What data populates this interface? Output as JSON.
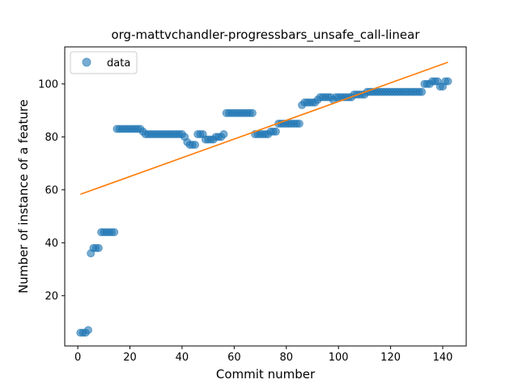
{
  "chart_data": {
    "type": "scatter",
    "title": "org-mattvchandler-progressbars_unsafe_call-linear",
    "xlabel": "Commit number",
    "ylabel": "Number of instance of a feature",
    "xlim": [
      -5,
      149
    ],
    "ylim": [
      1,
      114
    ],
    "xticks": [
      0,
      20,
      40,
      60,
      80,
      100,
      120,
      140
    ],
    "yticks": [
      20,
      40,
      60,
      80,
      100
    ],
    "legend": {
      "position": "top-left",
      "entries": [
        "data"
      ]
    },
    "grid": false,
    "series": [
      {
        "name": "data",
        "kind": "scatter",
        "color": "#1f77b4",
        "x": [
          1,
          2,
          3,
          4,
          5,
          6,
          7,
          8,
          9,
          10,
          11,
          12,
          13,
          14,
          15,
          16,
          17,
          18,
          19,
          20,
          21,
          22,
          23,
          24,
          25,
          26,
          27,
          28,
          29,
          30,
          31,
          32,
          33,
          34,
          35,
          36,
          37,
          38,
          39,
          40,
          41,
          42,
          43,
          44,
          45,
          46,
          47,
          48,
          49,
          50,
          51,
          52,
          53,
          54,
          55,
          56,
          57,
          58,
          59,
          60,
          61,
          62,
          63,
          64,
          65,
          66,
          67,
          68,
          69,
          70,
          71,
          72,
          73,
          74,
          75,
          76,
          77,
          78,
          79,
          80,
          81,
          82,
          83,
          84,
          85,
          86,
          87,
          88,
          89,
          90,
          91,
          92,
          93,
          94,
          95,
          96,
          97,
          98,
          99,
          100,
          101,
          102,
          103,
          104,
          105,
          106,
          107,
          108,
          109,
          110,
          111,
          112,
          113,
          114,
          115,
          116,
          117,
          118,
          119,
          120,
          121,
          122,
          123,
          124,
          125,
          126,
          127,
          128,
          129,
          130,
          131,
          132,
          133,
          134,
          135,
          136,
          137,
          138,
          139,
          140,
          141,
          142
        ],
        "y": [
          6,
          6,
          6,
          7,
          36,
          38,
          38,
          38,
          44,
          44,
          44,
          44,
          44,
          44,
          83,
          83,
          83,
          83,
          83,
          83,
          83,
          83,
          83,
          83,
          82,
          81,
          81,
          81,
          81,
          81,
          81,
          81,
          81,
          81,
          81,
          81,
          81,
          81,
          81,
          81,
          80,
          78,
          77,
          77,
          77,
          81,
          81,
          81,
          79,
          79,
          79,
          79,
          80,
          80,
          80,
          81,
          89,
          89,
          89,
          89,
          89,
          89,
          89,
          89,
          89,
          89,
          89,
          81,
          81,
          81,
          81,
          81,
          81,
          82,
          82,
          82,
          85,
          85,
          85,
          85,
          85,
          85,
          85,
          85,
          85,
          92,
          93,
          93,
          93,
          93,
          93,
          94,
          95,
          95,
          95,
          95,
          95,
          94,
          95,
          95,
          95,
          95,
          95,
          95,
          95,
          96,
          96,
          96,
          96,
          96,
          97,
          97,
          97,
          97,
          97,
          97,
          97,
          97,
          97,
          97,
          97,
          97,
          97,
          97,
          97,
          97,
          97,
          97,
          97,
          97,
          97,
          97,
          100,
          100,
          100,
          101,
          101,
          101,
          99,
          99,
          101,
          101
        ]
      },
      {
        "name": "",
        "kind": "line",
        "color": "#ff7f0e",
        "x": [
          1,
          142
        ],
        "y": [
          58.3,
          108.2
        ]
      }
    ]
  }
}
